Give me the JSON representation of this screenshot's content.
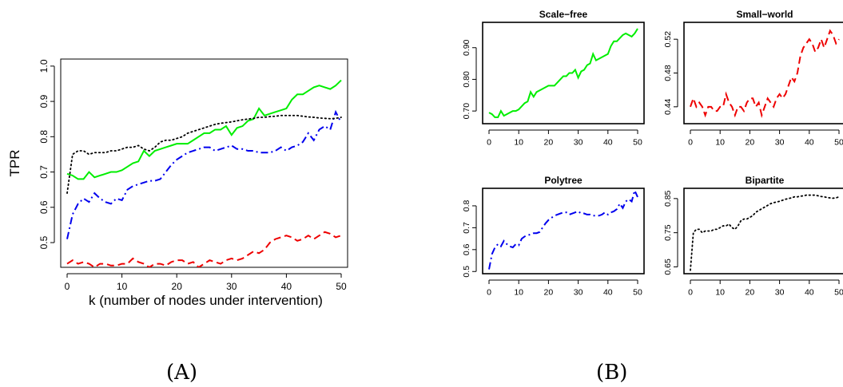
{
  "panel_labels": {
    "a": "(A)",
    "b": "(B)"
  },
  "chart_data": [
    {
      "id": "main",
      "type": "line",
      "title": "",
      "xlabel": "k (number of nodes under intervention)",
      "ylabel": "TPR",
      "xlim": [
        0,
        50
      ],
      "ylim": [
        0.43,
        1.02
      ],
      "xticks": [
        0,
        10,
        20,
        30,
        40,
        50
      ],
      "yticks": [
        0.5,
        0.6,
        0.7,
        0.8,
        0.9,
        1.0
      ],
      "ytick_labels": [
        "0.5",
        "0.6",
        "0.7",
        "0.8",
        "0.9",
        "1.0"
      ],
      "grid": false,
      "x": [
        0,
        1,
        2,
        3,
        4,
        5,
        6,
        7,
        8,
        9,
        10,
        11,
        12,
        13,
        14,
        15,
        16,
        17,
        18,
        19,
        20,
        21,
        22,
        23,
        24,
        25,
        26,
        27,
        28,
        29,
        30,
        31,
        32,
        33,
        34,
        35,
        36,
        37,
        38,
        39,
        40,
        41,
        42,
        43,
        44,
        45,
        46,
        47,
        48,
        49,
        50
      ],
      "series": [
        {
          "color": "#00ee00",
          "style": "solid",
          "values": [
            0.695,
            0.69,
            0.68,
            0.68,
            0.7,
            0.685,
            0.69,
            0.695,
            0.7,
            0.7,
            0.705,
            0.715,
            0.725,
            0.73,
            0.76,
            0.745,
            0.76,
            0.765,
            0.77,
            0.775,
            0.78,
            0.78,
            0.78,
            0.79,
            0.8,
            0.81,
            0.81,
            0.82,
            0.82,
            0.83,
            0.805,
            0.825,
            0.83,
            0.845,
            0.85,
            0.88,
            0.86,
            0.865,
            0.87,
            0.875,
            0.88,
            0.905,
            0.92,
            0.92,
            0.93,
            0.94,
            0.945,
            0.94,
            0.935,
            0.945,
            0.96
          ]
        },
        {
          "color": "#ee0000",
          "style": "dashed",
          "values": [
            0.44,
            0.45,
            0.44,
            0.445,
            0.44,
            0.43,
            0.44,
            0.44,
            0.435,
            0.435,
            0.44,
            0.44,
            0.455,
            0.445,
            0.44,
            0.43,
            0.44,
            0.44,
            0.435,
            0.445,
            0.45,
            0.45,
            0.44,
            0.445,
            0.43,
            0.44,
            0.45,
            0.445,
            0.44,
            0.45,
            0.455,
            0.45,
            0.455,
            0.465,
            0.475,
            0.47,
            0.48,
            0.5,
            0.51,
            0.515,
            0.52,
            0.515,
            0.505,
            0.51,
            0.52,
            0.51,
            0.52,
            0.53,
            0.525,
            0.515,
            0.52
          ]
        },
        {
          "color": "#0000ee",
          "style": "dashdot",
          "values": [
            0.51,
            0.58,
            0.61,
            0.625,
            0.615,
            0.64,
            0.625,
            0.615,
            0.61,
            0.625,
            0.62,
            0.65,
            0.66,
            0.665,
            0.67,
            0.675,
            0.675,
            0.68,
            0.7,
            0.72,
            0.735,
            0.745,
            0.755,
            0.76,
            0.765,
            0.77,
            0.77,
            0.76,
            0.765,
            0.77,
            0.775,
            0.765,
            0.765,
            0.76,
            0.76,
            0.755,
            0.755,
            0.755,
            0.76,
            0.77,
            0.76,
            0.77,
            0.775,
            0.785,
            0.81,
            0.79,
            0.82,
            0.83,
            0.82,
            0.87,
            0.84
          ]
        },
        {
          "color": "#000000",
          "style": "dotted",
          "values": [
            0.64,
            0.75,
            0.76,
            0.76,
            0.75,
            0.755,
            0.755,
            0.755,
            0.76,
            0.76,
            0.765,
            0.77,
            0.77,
            0.775,
            0.765,
            0.76,
            0.77,
            0.785,
            0.79,
            0.79,
            0.795,
            0.8,
            0.81,
            0.815,
            0.82,
            0.825,
            0.83,
            0.835,
            0.838,
            0.84,
            0.842,
            0.845,
            0.848,
            0.85,
            0.852,
            0.855,
            0.855,
            0.857,
            0.858,
            0.86,
            0.86,
            0.86,
            0.86,
            0.858,
            0.856,
            0.855,
            0.853,
            0.852,
            0.851,
            0.852,
            0.855
          ]
        }
      ]
    },
    {
      "id": "scale-free",
      "type": "line",
      "title": "Scale−free",
      "xlim": [
        0,
        50
      ],
      "ylim": [
        0.66,
        0.98
      ],
      "xticks": [
        0,
        10,
        20,
        30,
        40,
        50
      ],
      "yticks": [
        0.7,
        0.8,
        0.9
      ],
      "ytick_labels": [
        "0.70",
        "0.80",
        "0.90"
      ],
      "x": [
        0,
        1,
        2,
        3,
        4,
        5,
        6,
        7,
        8,
        9,
        10,
        11,
        12,
        13,
        14,
        15,
        16,
        17,
        18,
        19,
        20,
        21,
        22,
        23,
        24,
        25,
        26,
        27,
        28,
        29,
        30,
        31,
        32,
        33,
        34,
        35,
        36,
        37,
        38,
        39,
        40,
        41,
        42,
        43,
        44,
        45,
        46,
        47,
        48,
        49,
        50
      ],
      "series": [
        {
          "color": "#00ee00",
          "style": "solid",
          "values": [
            0.695,
            0.69,
            0.68,
            0.68,
            0.7,
            0.685,
            0.69,
            0.695,
            0.7,
            0.7,
            0.705,
            0.715,
            0.725,
            0.73,
            0.76,
            0.745,
            0.76,
            0.765,
            0.77,
            0.775,
            0.78,
            0.78,
            0.78,
            0.79,
            0.8,
            0.81,
            0.81,
            0.82,
            0.82,
            0.83,
            0.805,
            0.825,
            0.83,
            0.845,
            0.85,
            0.88,
            0.86,
            0.865,
            0.87,
            0.875,
            0.88,
            0.905,
            0.92,
            0.92,
            0.93,
            0.94,
            0.945,
            0.94,
            0.935,
            0.945,
            0.96
          ]
        }
      ]
    },
    {
      "id": "small-world",
      "type": "line",
      "title": "Small−world",
      "xlim": [
        0,
        50
      ],
      "ylim": [
        0.42,
        0.54
      ],
      "xticks": [
        0,
        10,
        20,
        30,
        40,
        50
      ],
      "yticks": [
        0.44,
        0.48,
        0.52
      ],
      "ytick_labels": [
        "0.44",
        "0.48",
        "0.52"
      ],
      "x": [
        0,
        1,
        2,
        3,
        4,
        5,
        6,
        7,
        8,
        9,
        10,
        11,
        12,
        13,
        14,
        15,
        16,
        17,
        18,
        19,
        20,
        21,
        22,
        23,
        24,
        25,
        26,
        27,
        28,
        29,
        30,
        31,
        32,
        33,
        34,
        35,
        36,
        37,
        38,
        39,
        40,
        41,
        42,
        43,
        44,
        45,
        46,
        47,
        48,
        49,
        50
      ],
      "series": [
        {
          "color": "#ee0000",
          "style": "dashed",
          "values": [
            0.44,
            0.45,
            0.44,
            0.445,
            0.44,
            0.43,
            0.44,
            0.44,
            0.435,
            0.435,
            0.44,
            0.44,
            0.455,
            0.445,
            0.44,
            0.43,
            0.44,
            0.44,
            0.435,
            0.445,
            0.45,
            0.45,
            0.44,
            0.445,
            0.43,
            0.44,
            0.45,
            0.445,
            0.44,
            0.45,
            0.455,
            0.45,
            0.455,
            0.465,
            0.475,
            0.47,
            0.48,
            0.5,
            0.51,
            0.515,
            0.52,
            0.515,
            0.505,
            0.51,
            0.52,
            0.51,
            0.52,
            0.53,
            0.525,
            0.515,
            0.52
          ]
        }
      ]
    },
    {
      "id": "polytree",
      "type": "line",
      "title": "Polytree",
      "xlim": [
        0,
        50
      ],
      "ylim": [
        0.49,
        0.88
      ],
      "xticks": [
        0,
        10,
        20,
        30,
        40,
        50
      ],
      "yticks": [
        0.5,
        0.6,
        0.7,
        0.8
      ],
      "ytick_labels": [
        "0.5",
        "0.6",
        "0.7",
        "0.8"
      ],
      "x": [
        0,
        1,
        2,
        3,
        4,
        5,
        6,
        7,
        8,
        9,
        10,
        11,
        12,
        13,
        14,
        15,
        16,
        17,
        18,
        19,
        20,
        21,
        22,
        23,
        24,
        25,
        26,
        27,
        28,
        29,
        30,
        31,
        32,
        33,
        34,
        35,
        36,
        37,
        38,
        39,
        40,
        41,
        42,
        43,
        44,
        45,
        46,
        47,
        48,
        49,
        50
      ],
      "series": [
        {
          "color": "#0000ee",
          "style": "dashdot",
          "values": [
            0.51,
            0.58,
            0.61,
            0.625,
            0.615,
            0.64,
            0.625,
            0.615,
            0.61,
            0.625,
            0.62,
            0.65,
            0.66,
            0.665,
            0.67,
            0.675,
            0.675,
            0.68,
            0.7,
            0.72,
            0.735,
            0.745,
            0.755,
            0.76,
            0.765,
            0.77,
            0.77,
            0.76,
            0.765,
            0.77,
            0.775,
            0.765,
            0.765,
            0.76,
            0.76,
            0.755,
            0.755,
            0.755,
            0.76,
            0.77,
            0.76,
            0.77,
            0.775,
            0.785,
            0.81,
            0.79,
            0.82,
            0.83,
            0.82,
            0.87,
            0.84
          ]
        }
      ]
    },
    {
      "id": "bipartite",
      "type": "line",
      "title": "Bipartite",
      "xlim": [
        0,
        50
      ],
      "ylim": [
        0.63,
        0.88
      ],
      "xticks": [
        0,
        10,
        20,
        30,
        40,
        50
      ],
      "yticks": [
        0.65,
        0.75,
        0.85
      ],
      "ytick_labels": [
        "0.65",
        "0.75",
        "0.85"
      ],
      "x": [
        0,
        1,
        2,
        3,
        4,
        5,
        6,
        7,
        8,
        9,
        10,
        11,
        12,
        13,
        14,
        15,
        16,
        17,
        18,
        19,
        20,
        21,
        22,
        23,
        24,
        25,
        26,
        27,
        28,
        29,
        30,
        31,
        32,
        33,
        34,
        35,
        36,
        37,
        38,
        39,
        40,
        41,
        42,
        43,
        44,
        45,
        46,
        47,
        48,
        49,
        50
      ],
      "series": [
        {
          "color": "#000000",
          "style": "dotted",
          "values": [
            0.64,
            0.75,
            0.76,
            0.76,
            0.75,
            0.755,
            0.755,
            0.755,
            0.76,
            0.76,
            0.765,
            0.77,
            0.77,
            0.775,
            0.765,
            0.76,
            0.77,
            0.785,
            0.79,
            0.79,
            0.795,
            0.8,
            0.81,
            0.815,
            0.82,
            0.825,
            0.83,
            0.835,
            0.838,
            0.84,
            0.842,
            0.845,
            0.848,
            0.85,
            0.852,
            0.855,
            0.855,
            0.857,
            0.858,
            0.86,
            0.86,
            0.86,
            0.86,
            0.858,
            0.856,
            0.855,
            0.853,
            0.852,
            0.851,
            0.852,
            0.855
          ]
        }
      ]
    }
  ]
}
